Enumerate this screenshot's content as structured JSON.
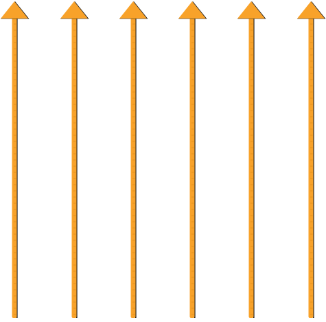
{
  "scene": {
    "description_free": true,
    "arrow_count": 6,
    "arrow_direction": "up",
    "colors": {
      "fill": "#F8A22A",
      "outline": "#1A1A1A",
      "tick": "#D88714",
      "background": "#FFFFFF"
    },
    "arrows": [
      {
        "icon": "up-arrow-icon"
      },
      {
        "icon": "up-arrow-icon"
      },
      {
        "icon": "up-arrow-icon"
      },
      {
        "icon": "up-arrow-icon"
      },
      {
        "icon": "up-arrow-icon"
      },
      {
        "icon": "up-arrow-icon"
      }
    ]
  }
}
